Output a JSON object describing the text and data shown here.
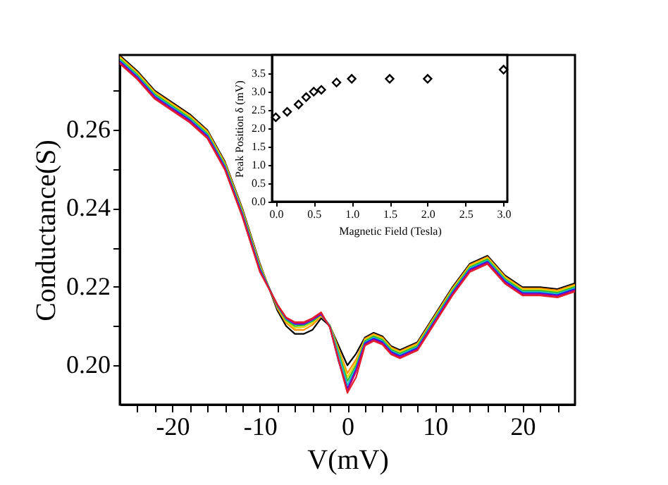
{
  "chart_data": [
    {
      "type": "line",
      "xlabel": "V(mV)",
      "ylabel": "Conductance(S)",
      "line_style": "solid",
      "xlim": [
        -26,
        26
      ],
      "ylim": [
        0.19,
        0.279
      ],
      "xticks": [
        {
          "value": -24,
          "label": null
        },
        {
          "value": -22,
          "label": null
        },
        {
          "value": -20,
          "label": "-20"
        },
        {
          "value": -18,
          "label": null
        },
        {
          "value": -16,
          "label": null
        },
        {
          "value": -14,
          "label": null
        },
        {
          "value": -12,
          "label": null
        },
        {
          "value": -10,
          "label": "-10"
        },
        {
          "value": -8,
          "label": null
        },
        {
          "value": -6,
          "label": null
        },
        {
          "value": -4,
          "label": null
        },
        {
          "value": -2,
          "label": null
        },
        {
          "value": 0,
          "label": "0"
        },
        {
          "value": 2,
          "label": null
        },
        {
          "value": 4,
          "label": null
        },
        {
          "value": 6,
          "label": null
        },
        {
          "value": 8,
          "label": null
        },
        {
          "value": 10,
          "label": "10"
        },
        {
          "value": 12,
          "label": null
        },
        {
          "value": 14,
          "label": null
        },
        {
          "value": 16,
          "label": null
        },
        {
          "value": 18,
          "label": null
        },
        {
          "value": 20,
          "label": "20"
        },
        {
          "value": 22,
          "label": null
        },
        {
          "value": 24,
          "label": null
        }
      ],
      "yticks": [
        {
          "value": 0.2,
          "label": "0.20"
        },
        {
          "value": 0.21,
          "label": null
        },
        {
          "value": 0.22,
          "label": "0.22"
        },
        {
          "value": 0.23,
          "label": null
        },
        {
          "value": 0.24,
          "label": "0.24"
        },
        {
          "value": 0.25,
          "label": null
        },
        {
          "value": 0.26,
          "label": "0.26"
        },
        {
          "value": 0.27,
          "label": null
        }
      ],
      "x": [
        -26,
        -24,
        -22,
        -20,
        -18,
        -16,
        -14,
        -12,
        -10,
        -8,
        -7,
        -6,
        -5,
        -4,
        -3,
        -2,
        -1,
        0,
        1,
        2,
        3,
        4,
        5,
        6,
        8,
        10,
        12,
        14,
        16,
        18,
        20,
        22,
        24,
        26
      ],
      "series": [
        {
          "color": "#000000",
          "values": [
            0.2789,
            0.2749,
            0.2699,
            0.2669,
            0.2639,
            0.2599,
            0.2519,
            0.2399,
            0.2259,
            0.214,
            0.21,
            0.208,
            0.208,
            0.209,
            0.212,
            0.21,
            0.205,
            0.2,
            0.203,
            0.2071,
            0.2083,
            0.2074,
            0.2049,
            0.2039,
            0.2059,
            0.2129,
            0.2199,
            0.2259,
            0.2279,
            0.2229,
            0.2199,
            0.2199,
            0.2194,
            0.2209
          ]
        },
        {
          "color": "#ff8c00",
          "values": [
            0.2786,
            0.2746,
            0.2696,
            0.2666,
            0.2636,
            0.2596,
            0.2516,
            0.2396,
            0.2256,
            0.2145,
            0.2108,
            0.209,
            0.209,
            0.2103,
            0.2125,
            0.2102,
            0.2042,
            0.198,
            0.2015,
            0.2068,
            0.208,
            0.2071,
            0.2046,
            0.2036,
            0.2056,
            0.2126,
            0.2196,
            0.2256,
            0.2276,
            0.2226,
            0.2196,
            0.2196,
            0.2191,
            0.2206
          ]
        },
        {
          "color": "#e6d800",
          "values": [
            0.2783,
            0.2743,
            0.2693,
            0.2663,
            0.2633,
            0.2593,
            0.2513,
            0.2393,
            0.2253,
            0.2148,
            0.2112,
            0.2095,
            0.2097,
            0.2108,
            0.2128,
            0.2101,
            0.2037,
            0.197,
            0.2007,
            0.2065,
            0.2077,
            0.2068,
            0.2043,
            0.2033,
            0.2053,
            0.2123,
            0.2193,
            0.2253,
            0.2273,
            0.2223,
            0.2193,
            0.2193,
            0.2188,
            0.2203
          ]
        },
        {
          "color": "#2eb82e",
          "values": [
            0.278,
            0.274,
            0.269,
            0.266,
            0.263,
            0.259,
            0.251,
            0.239,
            0.225,
            0.215,
            0.2115,
            0.21,
            0.2102,
            0.2112,
            0.213,
            0.2101,
            0.2032,
            0.196,
            0.2,
            0.2062,
            0.2074,
            0.2065,
            0.204,
            0.203,
            0.205,
            0.212,
            0.219,
            0.225,
            0.227,
            0.222,
            0.219,
            0.219,
            0.2185,
            0.22
          ]
        },
        {
          "color": "#20c0c0",
          "values": [
            0.2777,
            0.2737,
            0.2687,
            0.2657,
            0.2627,
            0.2587,
            0.2507,
            0.2387,
            0.2247,
            0.2152,
            0.2118,
            0.2105,
            0.2105,
            0.2115,
            0.2131,
            0.21,
            0.2028,
            0.195,
            0.1995,
            0.2059,
            0.2071,
            0.2062,
            0.2037,
            0.2027,
            0.2047,
            0.2117,
            0.2187,
            0.2247,
            0.2267,
            0.2217,
            0.2187,
            0.2187,
            0.2182,
            0.2197
          ]
        },
        {
          "color": "#1a1aff",
          "values": [
            0.2774,
            0.2734,
            0.2684,
            0.2654,
            0.2624,
            0.2584,
            0.2504,
            0.2384,
            0.2244,
            0.2153,
            0.212,
            0.2105,
            0.2105,
            0.2116,
            0.213,
            0.2098,
            0.201,
            0.194,
            0.199,
            0.2056,
            0.2068,
            0.2059,
            0.2034,
            0.2024,
            0.2044,
            0.2114,
            0.2184,
            0.2244,
            0.2264,
            0.2214,
            0.2184,
            0.2184,
            0.2179,
            0.2194
          ]
        },
        {
          "color": "#c0007a",
          "values": [
            0.2771,
            0.2731,
            0.2681,
            0.2651,
            0.2621,
            0.2581,
            0.2501,
            0.2381,
            0.2241,
            0.2154,
            0.2121,
            0.2107,
            0.2107,
            0.2117,
            0.2132,
            0.2097,
            0.2015,
            0.1935,
            0.1985,
            0.2053,
            0.2065,
            0.2056,
            0.2031,
            0.2021,
            0.2041,
            0.2111,
            0.2181,
            0.2241,
            0.2261,
            0.2211,
            0.2181,
            0.2181,
            0.2176,
            0.2191
          ]
        },
        {
          "color": "#e0202a",
          "values": [
            0.2768,
            0.2728,
            0.2678,
            0.2648,
            0.2618,
            0.2578,
            0.2498,
            0.2378,
            0.2238,
            0.2155,
            0.2122,
            0.211,
            0.211,
            0.212,
            0.2135,
            0.2096,
            0.2012,
            0.193,
            0.197,
            0.205,
            0.2062,
            0.2053,
            0.2028,
            0.2018,
            0.2038,
            0.2108,
            0.2178,
            0.2238,
            0.2258,
            0.2208,
            0.2178,
            0.2178,
            0.2173,
            0.2188
          ]
        }
      ]
    },
    {
      "type": "scatter",
      "xlabel": "Magnetic Field (Tesla)",
      "ylabel": "Peak Position  δ (mV)",
      "marker": "diamond",
      "xlim": [
        -0.05,
        3.05
      ],
      "ylim": [
        0,
        4.0
      ],
      "xticks": [
        {
          "value": 0,
          "label": "0.0"
        },
        {
          "value": 0.5,
          "label": "0.5"
        },
        {
          "value": 1,
          "label": "1.0"
        },
        {
          "value": 1.5,
          "label": "1.5"
        },
        {
          "value": 2,
          "label": "2.0"
        },
        {
          "value": 2.5,
          "label": "2.5"
        },
        {
          "value": 3,
          "label": "3.0"
        }
      ],
      "yticks": [
        {
          "value": 0,
          "label": "0.0"
        },
        {
          "value": 0.5,
          "label": "0.5"
        },
        {
          "value": 1,
          "label": "1.0"
        },
        {
          "value": 1.5,
          "label": "1.5"
        },
        {
          "value": 2,
          "label": "2.0"
        },
        {
          "value": 2.5,
          "label": "2.5"
        },
        {
          "value": 3,
          "label": "3.0"
        },
        {
          "value": 3.5,
          "label": "3.5"
        }
      ],
      "x": [
        0,
        0.15,
        0.3,
        0.4,
        0.5,
        0.6,
        0.8,
        1.0,
        1.5,
        2.0,
        3.0
      ],
      "series": [
        {
          "color": "#000000",
          "values": [
            2.3,
            2.45,
            2.65,
            2.85,
            3.0,
            3.05,
            3.25,
            3.35,
            3.35,
            3.35,
            3.6
          ]
        }
      ]
    }
  ]
}
